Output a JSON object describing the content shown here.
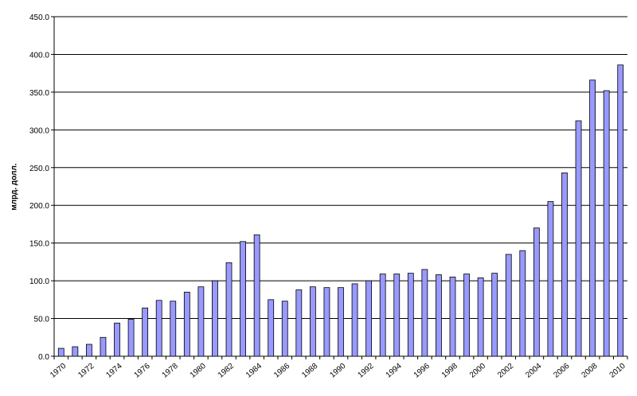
{
  "chart_data": {
    "type": "bar",
    "y_label": "млрд. долл.",
    "categories": [
      "1970",
      null,
      "1972",
      null,
      "1974",
      null,
      "1976",
      null,
      "1978",
      null,
      "1980",
      null,
      "1982",
      null,
      "1984",
      null,
      "1986",
      null,
      "1988",
      null,
      "1990",
      null,
      "1992",
      null,
      "1994",
      null,
      "1996",
      null,
      "1998",
      null,
      "2000",
      null,
      "2002",
      null,
      "2004",
      null,
      "2006",
      null,
      "2008",
      null,
      "2010"
    ],
    "values": [
      10.5,
      12.6,
      15.8,
      25,
      44,
      49,
      64,
      74,
      73,
      85,
      92,
      100,
      124,
      152,
      161,
      75,
      73,
      88,
      92,
      91,
      91,
      96,
      100,
      109,
      109,
      110,
      115,
      108,
      105,
      109,
      104,
      110,
      135,
      140,
      170,
      205,
      243,
      312,
      366,
      352,
      386
    ],
    "color": "#9999ff",
    "ylim": [
      0,
      450
    ],
    "yticks": [
      {
        "value": 0,
        "label": "0.0"
      },
      {
        "value": 50,
        "label": "50.0"
      },
      {
        "value": 100,
        "label": "100.0"
      },
      {
        "value": 150,
        "label": "150.0"
      },
      {
        "value": 200,
        "label": "200.0"
      },
      {
        "value": 250,
        "label": "250.0"
      },
      {
        "value": 300,
        "label": "300.0"
      },
      {
        "value": 350,
        "label": "350.0"
      },
      {
        "value": 400,
        "label": "400.0"
      },
      {
        "value": 450,
        "label": "450.0"
      }
    ],
    "grid": true
  }
}
